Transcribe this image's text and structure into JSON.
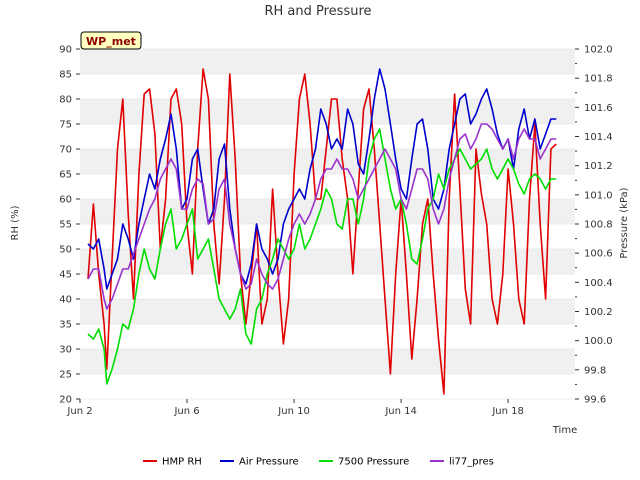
{
  "chart_data": {
    "type": "line",
    "title": "RH and Pressure",
    "badge": "WP_met",
    "xlabel": "Time",
    "ylabel_left": "RH (%)",
    "ylabel_right": "Pressure (kPa)",
    "x_unit": "days since Jun 2",
    "xlim": [
      0,
      18.5
    ],
    "x_ticks": [
      {
        "x": 0,
        "label": "Jun 2"
      },
      {
        "x": 4,
        "label": "Jun 6"
      },
      {
        "x": 8,
        "label": "Jun 10"
      },
      {
        "x": 12,
        "label": "Jun 14"
      },
      {
        "x": 16,
        "label": "Jun 18"
      }
    ],
    "ylim_left": [
      20,
      90
    ],
    "y_ticks_left": [
      "20",
      "25",
      "30",
      "35",
      "40",
      "45",
      "50",
      "55",
      "60",
      "65",
      "70",
      "75",
      "80",
      "85",
      "90"
    ],
    "ylim_right": [
      99.6,
      102.0
    ],
    "y_ticks_right": [
      "99.6",
      "99.8",
      "100.0",
      "100.2",
      "100.4",
      "100.6",
      "100.8",
      "101.0",
      "101.2",
      "101.4",
      "101.6",
      "101.8",
      "102.0"
    ],
    "grid": true,
    "legend_position": "bottom",
    "series": [
      {
        "name": "HMP RH",
        "axis": "left",
        "color": "#e00000",
        "x": [
          0.3,
          0.5,
          0.7,
          0.9,
          1.0,
          1.2,
          1.4,
          1.6,
          1.8,
          2.0,
          2.2,
          2.4,
          2.6,
          2.8,
          3.0,
          3.2,
          3.4,
          3.6,
          3.8,
          4.0,
          4.2,
          4.4,
          4.6,
          4.8,
          5.0,
          5.2,
          5.4,
          5.6,
          5.8,
          6.0,
          6.2,
          6.4,
          6.6,
          6.8,
          7.0,
          7.2,
          7.4,
          7.6,
          7.8,
          8.0,
          8.2,
          8.4,
          8.6,
          8.8,
          9.0,
          9.2,
          9.4,
          9.6,
          9.8,
          10.0,
          10.2,
          10.4,
          10.6,
          10.8,
          11.0,
          11.2,
          11.4,
          11.6,
          11.8,
          12.0,
          12.2,
          12.4,
          12.6,
          12.8,
          13.0,
          13.2,
          13.4,
          13.6,
          13.8,
          14.0,
          14.2,
          14.4,
          14.6,
          14.8,
          15.0,
          15.2,
          15.4,
          15.6,
          15.8,
          16.0,
          16.2,
          16.4,
          16.6,
          16.8,
          17.0,
          17.2,
          17.4,
          17.6,
          17.8
        ],
        "y": [
          44,
          59,
          45,
          35,
          26,
          48,
          70,
          80,
          57,
          40,
          65,
          81,
          82,
          73,
          50,
          60,
          80,
          82,
          75,
          55,
          45,
          70,
          86,
          80,
          55,
          43,
          60,
          85,
          68,
          45,
          35,
          45,
          55,
          35,
          40,
          62,
          45,
          31,
          40,
          65,
          80,
          85,
          75,
          60,
          60,
          70,
          80,
          80,
          68,
          60,
          45,
          62,
          78,
          82,
          70,
          55,
          40,
          25,
          45,
          60,
          45,
          28,
          40,
          55,
          60,
          45,
          32,
          21,
          60,
          81,
          62,
          42,
          35,
          70,
          61,
          55,
          40,
          35,
          45,
          66,
          55,
          40,
          35,
          60,
          75,
          55,
          40,
          70,
          71
        ]
      },
      {
        "name": "Air Pressure",
        "axis": "left",
        "color": "#0000cc",
        "x": [
          0.3,
          0.5,
          0.7,
          0.9,
          1.0,
          1.2,
          1.4,
          1.6,
          1.8,
          2.0,
          2.2,
          2.4,
          2.6,
          2.8,
          3.0,
          3.2,
          3.4,
          3.6,
          3.8,
          4.0,
          4.2,
          4.4,
          4.6,
          4.8,
          5.0,
          5.2,
          5.4,
          5.6,
          5.8,
          6.0,
          6.2,
          6.4,
          6.6,
          6.8,
          7.0,
          7.2,
          7.4,
          7.6,
          7.8,
          8.0,
          8.2,
          8.4,
          8.6,
          8.8,
          9.0,
          9.2,
          9.4,
          9.6,
          9.8,
          10.0,
          10.2,
          10.4,
          10.6,
          10.8,
          11.0,
          11.2,
          11.4,
          11.6,
          11.8,
          12.0,
          12.2,
          12.4,
          12.6,
          12.8,
          13.0,
          13.2,
          13.4,
          13.6,
          13.8,
          14.0,
          14.2,
          14.4,
          14.6,
          14.8,
          15.0,
          15.2,
          15.4,
          15.6,
          15.8,
          16.0,
          16.2,
          16.4,
          16.6,
          16.8,
          17.0,
          17.2,
          17.4,
          17.6,
          17.8
        ],
        "y": [
          51,
          50,
          52,
          46,
          42,
          45,
          48,
          55,
          52,
          48,
          55,
          60,
          65,
          62,
          68,
          72,
          77,
          70,
          58,
          60,
          68,
          70,
          62,
          55,
          58,
          68,
          71,
          58,
          50,
          45,
          43,
          47,
          55,
          50,
          48,
          45,
          48,
          55,
          58,
          60,
          62,
          60,
          66,
          70,
          78,
          75,
          70,
          72,
          70,
          78,
          75,
          67,
          65,
          72,
          80,
          86,
          82,
          75,
          68,
          62,
          60,
          68,
          75,
          76,
          70,
          60,
          58,
          62,
          70,
          75,
          80,
          81,
          75,
          77,
          80,
          82,
          78,
          73,
          70,
          72,
          66,
          74,
          78,
          72,
          76,
          70,
          73,
          76,
          76
        ]
      },
      {
        "name": "7500 Pressure",
        "axis": "left",
        "color": "#00dd00",
        "x": [
          0.3,
          0.5,
          0.7,
          0.9,
          1.0,
          1.2,
          1.4,
          1.6,
          1.8,
          2.0,
          2.2,
          2.4,
          2.6,
          2.8,
          3.0,
          3.2,
          3.4,
          3.6,
          3.8,
          4.0,
          4.2,
          4.4,
          4.6,
          4.8,
          5.0,
          5.2,
          5.4,
          5.6,
          5.8,
          6.0,
          6.2,
          6.4,
          6.6,
          6.8,
          7.0,
          7.2,
          7.4,
          7.6,
          7.8,
          8.0,
          8.2,
          8.4,
          8.6,
          8.8,
          9.0,
          9.2,
          9.4,
          9.6,
          9.8,
          10.0,
          10.2,
          10.4,
          10.6,
          10.8,
          11.0,
          11.2,
          11.4,
          11.6,
          11.8,
          12.0,
          12.2,
          12.4,
          12.6,
          12.8,
          13.0,
          13.2,
          13.4,
          13.6,
          13.8,
          14.0,
          14.2,
          14.4,
          14.6,
          14.8,
          15.0,
          15.2,
          15.4,
          15.6,
          15.8,
          16.0,
          16.2,
          16.4,
          16.6,
          16.8,
          17.0,
          17.2,
          17.4,
          17.6,
          17.8
        ],
        "y": [
          33,
          32,
          34,
          30,
          23,
          26,
          30,
          35,
          34,
          38,
          45,
          50,
          46,
          44,
          50,
          55,
          58,
          50,
          52,
          55,
          58,
          48,
          50,
          52,
          46,
          40,
          38,
          36,
          38,
          42,
          33,
          31,
          38,
          40,
          45,
          48,
          52,
          50,
          48,
          50,
          55,
          50,
          52,
          55,
          58,
          62,
          60,
          55,
          54,
          60,
          60,
          55,
          60,
          68,
          72,
          74,
          68,
          62,
          58,
          60,
          55,
          48,
          47,
          52,
          58,
          60,
          65,
          62,
          66,
          68,
          70,
          68,
          66,
          67,
          68,
          70,
          66,
          64,
          66,
          68,
          66,
          63,
          61,
          64,
          65,
          64,
          62,
          64,
          64
        ]
      },
      {
        "name": "li77_pres",
        "axis": "left",
        "color": "#9933cc",
        "x": [
          0.3,
          0.5,
          0.7,
          0.9,
          1.0,
          1.2,
          1.4,
          1.6,
          1.8,
          2.0,
          2.2,
          2.4,
          2.6,
          2.8,
          3.0,
          3.2,
          3.4,
          3.6,
          3.8,
          4.0,
          4.2,
          4.4,
          4.6,
          4.8,
          5.0,
          5.2,
          5.4,
          5.6,
          5.8,
          6.0,
          6.2,
          6.4,
          6.6,
          6.8,
          7.0,
          7.2,
          7.4,
          7.6,
          7.8,
          8.0,
          8.2,
          8.4,
          8.6,
          8.8,
          9.0,
          9.2,
          9.4,
          9.6,
          9.8,
          10.0,
          10.2,
          10.4,
          10.6,
          10.8,
          11.0,
          11.2,
          11.4,
          11.6,
          11.8,
          12.0,
          12.2,
          12.4,
          12.6,
          12.8,
          13.0,
          13.2,
          13.4,
          13.6,
          13.8,
          14.0,
          14.2,
          14.4,
          14.6,
          14.8,
          15.0,
          15.2,
          15.4,
          15.6,
          15.8,
          16.0,
          16.2,
          16.4,
          16.6,
          16.8,
          17.0,
          17.2,
          17.4,
          17.6,
          17.8
        ],
        "y": [
          44,
          46,
          46,
          40,
          38,
          40,
          43,
          46,
          46,
          49,
          52,
          55,
          58,
          60,
          64,
          66,
          68,
          66,
          58,
          58,
          62,
          64,
          63,
          55,
          56,
          62,
          64,
          55,
          50,
          45,
          42,
          43,
          48,
          45,
          43,
          42,
          44,
          48,
          52,
          55,
          57,
          55,
          57,
          60,
          64,
          66,
          66,
          68,
          66,
          66,
          64,
          60,
          62,
          64,
          66,
          68,
          70,
          68,
          66,
          60,
          58,
          62,
          66,
          66,
          64,
          58,
          55,
          58,
          64,
          68,
          72,
          73,
          70,
          72,
          75,
          75,
          74,
          72,
          70,
          72,
          68,
          72,
          74,
          72,
          72,
          68,
          70,
          72,
          72
        ]
      }
    ]
  }
}
